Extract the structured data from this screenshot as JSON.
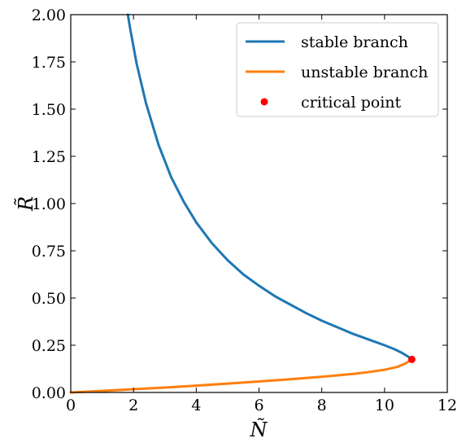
{
  "chart_data": {
    "type": "line",
    "xlabel": "Ñ",
    "ylabel": "R̃",
    "xlim": [
      0,
      12
    ],
    "ylim": [
      0,
      2
    ],
    "xticks": [
      0,
      2,
      4,
      6,
      8,
      10,
      12
    ],
    "yticks": [
      0,
      0.25,
      0.5,
      0.75,
      1.0,
      1.25,
      1.5,
      1.75,
      2.0
    ],
    "x_tick_labels": [
      "0",
      "2",
      "4",
      "6",
      "8",
      "10",
      "12"
    ],
    "y_tick_labels": [
      "0.00",
      "0.25",
      "0.50",
      "0.75",
      "1.00",
      "1.25",
      "1.50",
      "1.75",
      "2.00"
    ],
    "grid": false,
    "legend_position": "top-right",
    "series": [
      {
        "name": "stable branch",
        "color": "#1f77b4",
        "x": [
          1.82,
          1.9,
          2.1,
          2.4,
          2.8,
          3.2,
          3.6,
          4.0,
          4.5,
          5.0,
          5.5,
          6.0,
          6.5,
          7.0,
          7.5,
          8.0,
          8.5,
          9.0,
          9.5,
          10.0,
          10.3,
          10.55,
          10.75,
          10.87
        ],
        "y": [
          2.0,
          1.92,
          1.74,
          1.53,
          1.31,
          1.14,
          1.01,
          0.9,
          0.79,
          0.7,
          0.625,
          0.565,
          0.51,
          0.465,
          0.42,
          0.38,
          0.345,
          0.31,
          0.28,
          0.25,
          0.23,
          0.21,
          0.19,
          0.175
        ]
      },
      {
        "name": "unstable branch",
        "color": "#ff7f0e",
        "x": [
          0,
          1,
          2,
          3,
          4,
          5,
          6,
          7,
          8,
          9,
          9.5,
          10.0,
          10.4,
          10.65,
          10.87
        ],
        "y": [
          0,
          0.008,
          0.017,
          0.026,
          0.036,
          0.047,
          0.058,
          0.07,
          0.083,
          0.098,
          0.108,
          0.12,
          0.135,
          0.152,
          0.175
        ]
      },
      {
        "name": "critical point",
        "color": "#ff0000",
        "type": "scatter",
        "x": [
          10.87
        ],
        "y": [
          0.175
        ]
      }
    ]
  }
}
